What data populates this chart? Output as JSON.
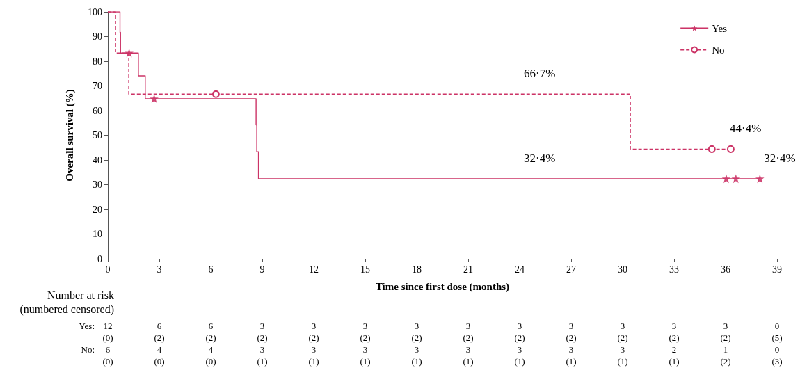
{
  "chart_data": {
    "type": "step",
    "xlabel": "Time since first dose (months)",
    "ylabel": "Overall survival (%)",
    "xlim": [
      0,
      39
    ],
    "xticks": [
      0,
      3,
      6,
      9,
      12,
      15,
      18,
      21,
      24,
      27,
      30,
      33,
      36,
      39
    ],
    "ylim": [
      0,
      100
    ],
    "yticks": [
      0,
      10,
      20,
      30,
      40,
      50,
      60,
      70,
      80,
      90,
      100
    ],
    "grid": false,
    "legend": "top right",
    "series": [
      {
        "name": "Yes",
        "color": "#cc3366",
        "line_style": "solid",
        "x": [
          0,
          0.71,
          0.74,
          1.78,
          2.18,
          8.64,
          8.68,
          8.78,
          38
        ],
        "values": [
          100,
          91.7,
          83.3,
          74.1,
          64.8,
          54.2,
          43.3,
          32.4,
          32.4
        ]
      },
      {
        "type": "scatter",
        "color": "#cc3366",
        "marker": "star",
        "x": [
          1.24,
          2.7,
          36.04,
          36.6,
          38
        ],
        "values": [
          83.3,
          64.8,
          32.4,
          32.4,
          32.4
        ]
      },
      {
        "name": "No",
        "color": "#cc3366",
        "line_style": "dashed",
        "x": [
          0,
          0.45,
          1.22,
          30.45,
          36.3
        ],
        "values": [
          100,
          83.3,
          66.7,
          44.4,
          44.4
        ]
      },
      {
        "type": "scatter",
        "color": "#cc3366",
        "marker": "circle",
        "x": [
          6.3,
          35.2,
          36.3
        ],
        "values": [
          66.7,
          44.4,
          44.4
        ]
      }
    ],
    "ref_lines": [
      {
        "axis": "x",
        "value": 24,
        "color": "#000000",
        "line_style": "dashed"
      },
      {
        "axis": "x",
        "value": 36,
        "color": "#000000",
        "line_style": "dashed"
      }
    ],
    "annotations": [
      {
        "text": "66·7%",
        "x": 24,
        "y": 66.7
      },
      {
        "text": "32·4%",
        "x": 24,
        "y": 32.4
      },
      {
        "text": "44·4%",
        "x": 36,
        "y": 44.4
      },
      {
        "text": "32·4%",
        "x": 38,
        "y": 32.4
      },
      "Number at risk",
      "(numbered censored)",
      "Yes: 12 6 6 3 3 3 3 3 3 3 3 3 3 0",
      "(0) (2) (2) (2) (2) (2) (2) (2) (2) (2) (2) (2) (2) (5)",
      "No: 6 4 4 3 3 3 3 3 3 3 3 2 1 0",
      "(0) (0) (0) (1) (1) (1) (1) (1) (1) (1) (1) (1) (2) (3)"
    ]
  }
}
